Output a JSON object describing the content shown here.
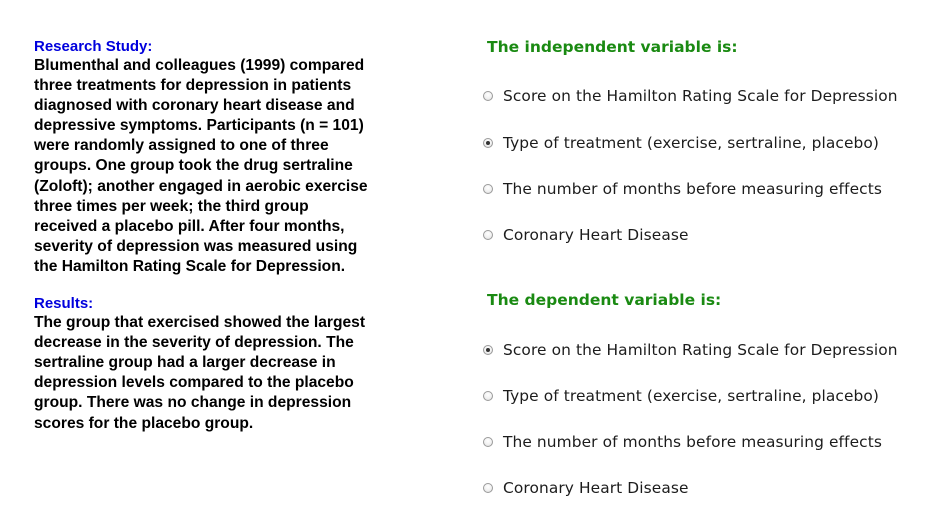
{
  "study": {
    "heading": "Research Study:",
    "lines": [
      "Blumenthal and colleagues (1999) compared",
      "three treatments for depression in patients",
      "diagnosed with coronary heart disease and",
      "depressive symptoms. Participants (n = 101)",
      "were randomly assigned to one of three",
      "groups. One group took the drug sertraline",
      "(Zoloft); another engaged in aerobic exercise",
      "three times per week; the third group",
      "received a placebo pill. After four months,",
      "severity of depression was measured using",
      "the Hamilton Rating Scale for Depression."
    ]
  },
  "results": {
    "heading": "Results:",
    "lines": [
      "The group that exercised showed the largest",
      "decrease in the severity of depression. The",
      "sertraline group had a larger decrease in",
      "depression levels compared to the placebo",
      "group. There was no change in depression",
      "scores for the placebo group."
    ]
  },
  "independent": {
    "title": "The independent variable is:",
    "options": [
      {
        "label": "Score on the Hamilton Rating Scale for Depression",
        "checked": false
      },
      {
        "label": "Type of treatment (exercise, sertraline, placebo)",
        "checked": true
      },
      {
        "label": "The number of months before measuring effects",
        "checked": false
      },
      {
        "label": "Coronary Heart Disease",
        "checked": false
      }
    ]
  },
  "dependent": {
    "title": "The dependent variable is:",
    "options": [
      {
        "label": "Score on the Hamilton Rating Scale for Depression",
        "checked": true
      },
      {
        "label": "Type of treatment (exercise, sertraline, placebo)",
        "checked": false
      },
      {
        "label": "The number of months before measuring effects",
        "checked": false
      },
      {
        "label": "Coronary Heart Disease",
        "checked": false
      }
    ]
  },
  "colors": {
    "section_heading": "#0000dd",
    "question_title": "#1a8a12",
    "body_text": "#000000"
  }
}
